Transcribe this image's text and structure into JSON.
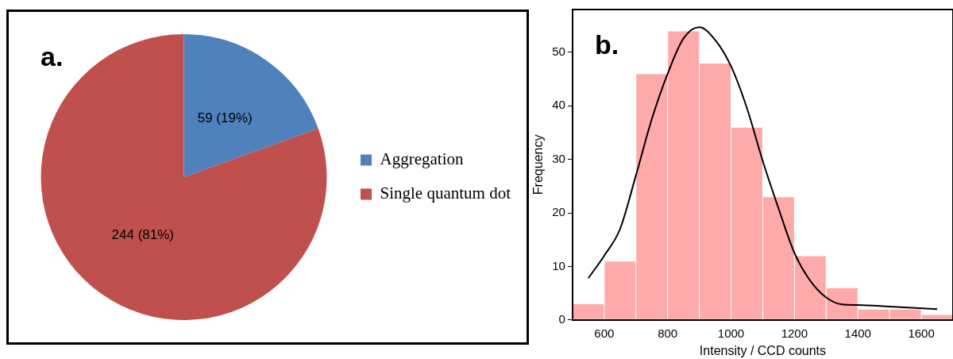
{
  "chart_data": [
    {
      "type": "pie",
      "title": "a.",
      "categories": [
        "Aggregation",
        "Single quantum dot"
      ],
      "values": [
        59,
        244
      ],
      "colors": [
        "#4f81bd",
        "#c0504d"
      ],
      "value_labels": [
        "59 (19%)",
        "244 (81%)"
      ],
      "legend": "right"
    },
    {
      "type": "histogram",
      "title": "b.",
      "xlabel": "Intensity / CCD counts",
      "ylabel": "Frequency",
      "bins": [
        500,
        600,
        700,
        800,
        900,
        1000,
        1100,
        1200,
        1300,
        1400,
        1500,
        1600,
        1700
      ],
      "xlim": [
        500,
        1700
      ],
      "xticks": [
        600,
        800,
        1000,
        1200,
        1400,
        1600
      ],
      "ylim": [
        0,
        58
      ],
      "yticks": [
        0,
        10,
        20,
        30,
        40,
        50
      ],
      "series": [
        {
          "type": "histogram",
          "color": "#ff0000",
          "values": [
            3,
            11,
            46,
            54,
            48,
            36,
            23,
            12,
            6,
            2,
            2,
            1
          ]
        },
        {
          "type": "line",
          "color": "#000000",
          "x": [
            550,
            600,
            650,
            700,
            750,
            800,
            850,
            900,
            950,
            1000,
            1050,
            1100,
            1150,
            1200,
            1250,
            1300,
            1350,
            1400,
            1500,
            1650
          ],
          "values": [
            7.8,
            12,
            17,
            27,
            37.5,
            46,
            52.6,
            54.7,
            52.3,
            47.4,
            39.6,
            29.7,
            20.8,
            12.5,
            7.3,
            4.2,
            2.9,
            2.8,
            2.5,
            2.0
          ]
        }
      ]
    }
  ]
}
